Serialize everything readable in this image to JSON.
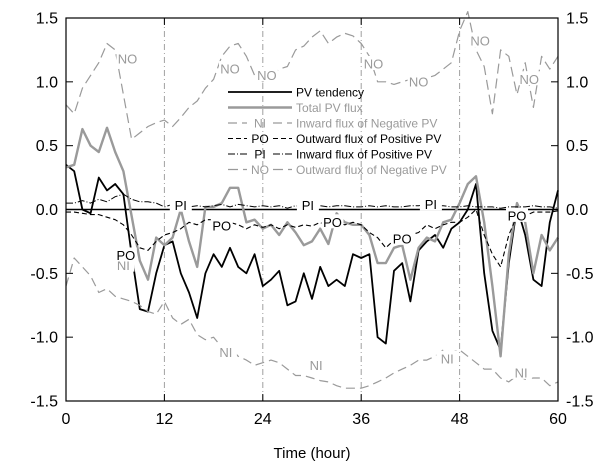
{
  "chart_data": {
    "type": "line",
    "title": "",
    "xlabel": "Time (hour)",
    "ylabel": "",
    "xlim": [
      0,
      60
    ],
    "ylim": [
      -1.5,
      1.5
    ],
    "x_ticks": [
      0,
      12,
      24,
      36,
      48,
      60
    ],
    "y_ticks": [
      -1.5,
      -1.0,
      -0.5,
      0.0,
      0.5,
      1.0,
      1.5
    ],
    "y_ticks_right": [
      -1.5,
      -1.0,
      -0.5,
      0.0,
      0.5,
      1.0,
      1.5
    ],
    "reference_lines_x": [
      12,
      24,
      36,
      48
    ],
    "zero_line": 0,
    "legend_position": "top-center",
    "series": [
      {
        "name": "PV tendency",
        "code": "",
        "color": "#000000",
        "dash": "",
        "width": 1.8,
        "x": [
          0,
          1,
          2,
          3,
          4,
          5,
          6,
          7,
          8,
          9,
          10,
          11,
          12,
          13,
          14,
          15,
          16,
          17,
          18,
          19,
          20,
          21,
          22,
          23,
          24,
          25,
          26,
          27,
          28,
          29,
          30,
          31,
          32,
          33,
          34,
          35,
          36,
          37,
          38,
          39,
          40,
          41,
          42,
          43,
          44,
          45,
          46,
          47,
          48,
          49,
          50,
          51,
          52,
          53,
          54,
          55,
          56,
          57,
          58,
          59,
          60
        ],
        "y": [
          0.35,
          0.3,
          0.0,
          -0.03,
          0.25,
          0.15,
          0.2,
          0.12,
          -0.35,
          -0.78,
          -0.8,
          -0.5,
          -0.28,
          -0.25,
          -0.5,
          -0.65,
          -0.85,
          -0.5,
          -0.35,
          -0.45,
          -0.3,
          -0.45,
          -0.5,
          -0.35,
          -0.6,
          -0.55,
          -0.48,
          -0.75,
          -0.72,
          -0.5,
          -0.7,
          -0.45,
          -0.6,
          -0.55,
          -0.6,
          -0.35,
          -0.38,
          -0.35,
          -1.0,
          -1.05,
          -0.48,
          -0.42,
          -0.72,
          -0.32,
          -0.25,
          -0.2,
          -0.3,
          -0.15,
          -0.1,
          0.0,
          0.2,
          -0.5,
          -0.95,
          -1.1,
          -0.42,
          0.02,
          -0.2,
          -0.55,
          -0.6,
          -0.1,
          0.15
        ],
        "labels": []
      },
      {
        "name": "Total PV flux",
        "code": "",
        "color": "#9a9a9a",
        "dash": "",
        "width": 2.4,
        "x": [
          0,
          1,
          2,
          3,
          4,
          5,
          6,
          7,
          8,
          9,
          10,
          11,
          12,
          13,
          14,
          15,
          16,
          17,
          18,
          19,
          20,
          21,
          22,
          23,
          24,
          25,
          26,
          27,
          28,
          29,
          30,
          31,
          32,
          33,
          34,
          35,
          36,
          37,
          38,
          39,
          40,
          41,
          42,
          43,
          44,
          45,
          46,
          47,
          48,
          49,
          50,
          51,
          52,
          53,
          54,
          55,
          56,
          57,
          58,
          59,
          60
        ],
        "y": [
          0.33,
          0.35,
          0.63,
          0.5,
          0.45,
          0.64,
          0.45,
          0.3,
          -0.05,
          -0.4,
          -0.55,
          -0.22,
          -0.28,
          -0.22,
          0.0,
          -0.25,
          -0.45,
          0.02,
          0.02,
          0.05,
          0.17,
          0.17,
          -0.1,
          -0.08,
          -0.15,
          -0.12,
          -0.2,
          -0.1,
          -0.18,
          -0.28,
          -0.25,
          -0.15,
          -0.27,
          -0.03,
          -0.1,
          -0.12,
          -0.12,
          -0.2,
          -0.42,
          -0.42,
          -0.3,
          -0.28,
          -0.55,
          -0.3,
          -0.22,
          -0.25,
          -0.1,
          -0.08,
          0.05,
          0.2,
          0.26,
          -0.1,
          -0.6,
          -1.15,
          -0.35,
          0.05,
          -0.1,
          -0.5,
          -0.2,
          -0.32,
          -0.22
        ],
        "labels": []
      },
      {
        "name": "Inward flux of Negative PV",
        "code": "NI",
        "color": "#9a9a9a",
        "dash": "9,5",
        "width": 1.2,
        "x": [
          0,
          1,
          2,
          3,
          4,
          5,
          6,
          7,
          8,
          9,
          10,
          11,
          12,
          13,
          14,
          15,
          16,
          17,
          18,
          19,
          20,
          21,
          22,
          23,
          24,
          25,
          26,
          27,
          28,
          29,
          30,
          31,
          32,
          33,
          34,
          35,
          36,
          37,
          38,
          39,
          40,
          41,
          42,
          43,
          44,
          45,
          46,
          47,
          48,
          49,
          50,
          51,
          52,
          53,
          54,
          55,
          56,
          57,
          58,
          59,
          60
        ],
        "y": [
          -0.6,
          -0.38,
          -0.45,
          -0.52,
          -0.65,
          -0.62,
          -0.68,
          -0.7,
          -0.72,
          -0.75,
          -0.8,
          -0.82,
          -0.72,
          -0.85,
          -0.9,
          -0.86,
          -0.98,
          -1.02,
          -1.0,
          -1.08,
          -1.08,
          -1.15,
          -1.18,
          -1.22,
          -1.2,
          -1.18,
          -1.2,
          -1.25,
          -1.3,
          -1.3,
          -1.32,
          -1.34,
          -1.35,
          -1.38,
          -1.4,
          -1.4,
          -1.4,
          -1.38,
          -1.35,
          -1.32,
          -1.28,
          -1.25,
          -1.22,
          -1.18,
          -1.18,
          -1.15,
          -1.1,
          -1.12,
          -1.1,
          -1.15,
          -1.2,
          -1.25,
          -1.25,
          -1.32,
          -1.35,
          -1.3,
          -1.33,
          -1.32,
          -1.32,
          -1.38,
          -1.35
        ],
        "labels": [
          {
            "text": "NI",
            "x": 7,
            "y": -0.44
          },
          {
            "text": "NI",
            "x": 19.5,
            "y": -1.12
          },
          {
            "text": "NI",
            "x": 30.5,
            "y": -1.22
          },
          {
            "text": "NI",
            "x": 46.5,
            "y": -1.17
          },
          {
            "text": "NI",
            "x": 55.5,
            "y": -1.28
          }
        ]
      },
      {
        "name": "Outward flux of Positive PV",
        "code": "PO",
        "color": "#000000",
        "dash": "5,3",
        "width": 1.1,
        "x": [
          0,
          1,
          2,
          3,
          4,
          5,
          6,
          7,
          8,
          9,
          10,
          11,
          12,
          13,
          14,
          15,
          16,
          17,
          18,
          19,
          20,
          21,
          22,
          23,
          24,
          25,
          26,
          27,
          28,
          29,
          30,
          31,
          32,
          33,
          34,
          35,
          36,
          37,
          38,
          39,
          40,
          41,
          42,
          43,
          44,
          45,
          46,
          47,
          48,
          49,
          50,
          51,
          52,
          53,
          54,
          55,
          56,
          57,
          58,
          59,
          60
        ],
        "y": [
          -0.02,
          -0.02,
          -0.03,
          -0.04,
          -0.04,
          -0.06,
          -0.08,
          -0.12,
          -0.2,
          -0.3,
          -0.32,
          -0.25,
          -0.2,
          -0.18,
          -0.15,
          -0.1,
          -0.12,
          -0.08,
          -0.08,
          -0.1,
          -0.1,
          -0.12,
          -0.15,
          -0.12,
          -0.14,
          -0.12,
          -0.15,
          -0.12,
          -0.14,
          -0.12,
          -0.13,
          -0.1,
          -0.14,
          -0.1,
          -0.12,
          -0.1,
          -0.12,
          -0.18,
          -0.22,
          -0.3,
          -0.24,
          -0.22,
          -0.2,
          -0.18,
          -0.12,
          -0.15,
          -0.12,
          -0.1,
          -0.1,
          -0.06,
          0.0,
          -0.2,
          -0.35,
          -0.45,
          -0.2,
          -0.05,
          -0.05,
          -0.02,
          -0.02,
          -0.02,
          -0.01
        ],
        "labels": [
          {
            "text": "PO",
            "x": 7.3,
            "y": -0.36
          },
          {
            "text": "PO",
            "x": 19,
            "y": -0.13
          },
          {
            "text": "PO",
            "x": 32.5,
            "y": -0.1
          },
          {
            "text": "PO",
            "x": 41,
            "y": -0.23
          },
          {
            "text": "PO",
            "x": 55,
            "y": -0.05
          }
        ]
      },
      {
        "name": "Inward flux of Positive PV",
        "code": "PI",
        "color": "#000000",
        "dash": "7,2,1,2",
        "width": 1.0,
        "x": [
          0,
          1,
          2,
          3,
          4,
          5,
          6,
          7,
          8,
          9,
          10,
          11,
          12,
          13,
          14,
          15,
          16,
          17,
          18,
          19,
          20,
          21,
          22,
          23,
          24,
          25,
          26,
          27,
          28,
          29,
          30,
          31,
          32,
          33,
          34,
          35,
          36,
          37,
          38,
          39,
          40,
          41,
          42,
          43,
          44,
          45,
          46,
          47,
          48,
          49,
          50,
          51,
          52,
          53,
          54,
          55,
          56,
          57,
          58,
          59,
          60
        ],
        "y": [
          0.05,
          0.05,
          0.07,
          0.05,
          0.08,
          0.06,
          0.1,
          0.12,
          0.08,
          0.06,
          0.06,
          0.05,
          0.02,
          0.04,
          0.03,
          0.02,
          0.03,
          0.02,
          0.03,
          0.04,
          0.02,
          0.04,
          0.03,
          0.02,
          0.03,
          0.02,
          0.03,
          0.01,
          0.03,
          0.02,
          0.02,
          0.03,
          0.02,
          0.03,
          0.03,
          0.02,
          0.02,
          0.03,
          0.02,
          0.03,
          0.02,
          0.02,
          0.03,
          0.03,
          0.04,
          0.03,
          0.03,
          0.02,
          0.02,
          0.03,
          0.02,
          0.02,
          0.02,
          0.01,
          0.02,
          0.02,
          0.02,
          0.03,
          0.02,
          0.02,
          0.01
        ],
        "labels": [
          {
            "text": "PI",
            "x": 14,
            "y": 0.03
          },
          {
            "text": "PI",
            "x": 29.5,
            "y": 0.03
          },
          {
            "text": "PI",
            "x": 44.5,
            "y": 0.04
          }
        ]
      },
      {
        "name": "Outward flux of Negative PV",
        "code": "NO",
        "color": "#9a9a9a",
        "dash": "10,5",
        "width": 1.2,
        "x": [
          0,
          1,
          2,
          3,
          4,
          5,
          6,
          7,
          8,
          9,
          10,
          11,
          12,
          13,
          14,
          15,
          16,
          17,
          18,
          19,
          20,
          21,
          22,
          23,
          24,
          25,
          26,
          27,
          28,
          29,
          30,
          31,
          32,
          33,
          34,
          35,
          36,
          37,
          38,
          39,
          40,
          41,
          42,
          43,
          44,
          45,
          46,
          47,
          48,
          49,
          50,
          51,
          52,
          53,
          54,
          55,
          56,
          57,
          58,
          59,
          60
        ],
        "y": [
          0.82,
          0.75,
          0.95,
          1.05,
          1.15,
          1.3,
          1.25,
          0.9,
          0.55,
          0.6,
          0.65,
          0.68,
          0.7,
          0.65,
          0.72,
          0.8,
          0.85,
          0.95,
          1.02,
          1.2,
          1.28,
          1.3,
          1.2,
          1.05,
          1.0,
          1.05,
          1.1,
          1.12,
          1.25,
          1.28,
          1.35,
          1.4,
          1.3,
          1.35,
          1.38,
          1.36,
          1.3,
          1.2,
          1.0,
          1.0,
          0.98,
          1.0,
          1.02,
          0.98,
          1.03,
          1.05,
          1.1,
          1.15,
          1.4,
          1.55,
          1.25,
          1.12,
          0.75,
          1.25,
          1.2,
          0.9,
          1.15,
          0.8,
          1.2,
          1.1,
          1.2
        ],
        "labels": [
          {
            "text": "NO",
            "x": 7.5,
            "y": 1.18
          },
          {
            "text": "NO",
            "x": 20,
            "y": 1.1
          },
          {
            "text": "NO",
            "x": 24.5,
            "y": 1.05
          },
          {
            "text": "NO",
            "x": 37.5,
            "y": 1.14
          },
          {
            "text": "NO",
            "x": 43,
            "y": 1.0
          },
          {
            "text": "NO",
            "x": 50.5,
            "y": 1.32
          },
          {
            "text": "NO",
            "x": 56.5,
            "y": 1.02
          }
        ]
      }
    ]
  }
}
